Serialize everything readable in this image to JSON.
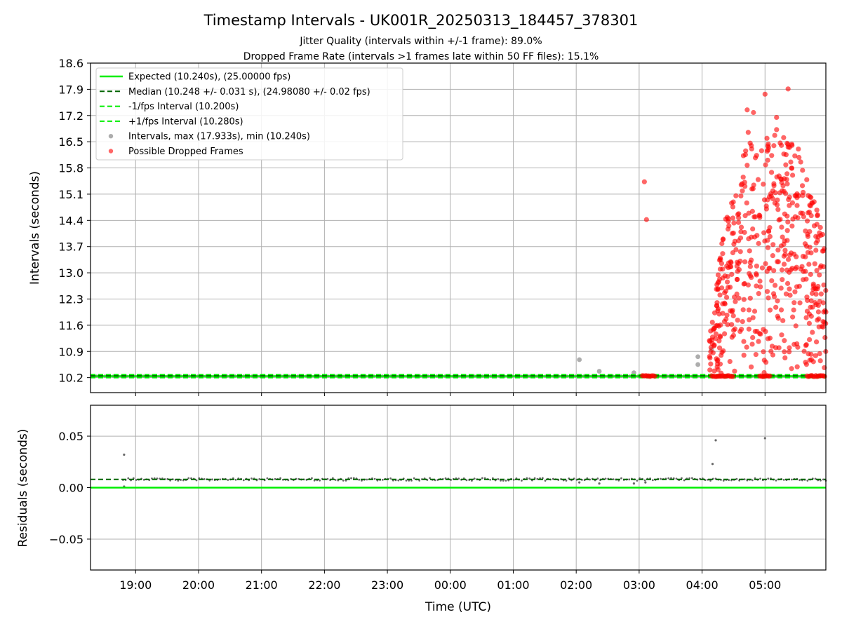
{
  "figure": {
    "title": "Timestamp Intervals - UK001R_20250313_184457_378301",
    "subtitle_1": "Jitter Quality (intervals within +/-1 frame): 89.0%",
    "subtitle_2": "Dropped Frame Rate (intervals >1 frames late within 50 FF files): 15.1%"
  },
  "colors": {
    "expected": "#00ee00",
    "median": "#006400",
    "interval_gray": "#999999",
    "dropped_red": "#ff0000",
    "residual_gray": "#666666",
    "grid": "#b0b0b0"
  },
  "chart_data": [
    {
      "type": "scatter",
      "title": "",
      "xlabel": "",
      "ylabel": "Intervals (seconds)",
      "x_unit": "time UTC",
      "xlim": [
        "18:17",
        "05:58"
      ],
      "ylim": [
        9.8,
        18.6
      ],
      "x_ticks": [
        "19:00",
        "20:00",
        "21:00",
        "22:00",
        "23:00",
        "00:00",
        "01:00",
        "02:00",
        "03:00",
        "04:00",
        "05:00"
      ],
      "y_ticks": [
        "10.2",
        "10.9",
        "11.6",
        "12.3",
        "13.0",
        "13.7",
        "14.4",
        "15.1",
        "15.8",
        "16.5",
        "17.2",
        "17.9",
        "18.6"
      ],
      "grid": true,
      "legend_position": "top-left",
      "legend": [
        "Expected (10.240s), (25.00000 fps)",
        "Median (10.248 +/- 0.031 s), (24.98080 +/- 0.02 fps)",
        "-1/fps Interval (10.200s)",
        "+1/fps Interval (10.280s)",
        "Intervals, max (17.933s), min (10.240s)",
        "Possible Dropped Frames"
      ],
      "reference_lines": {
        "expected": 10.24,
        "median": 10.248,
        "minus_one_frame": 10.2,
        "plus_one_frame": 10.28
      },
      "baseline_span": [
        "18:17",
        "05:58"
      ],
      "gray_outliers": [
        {
          "x": "02:03",
          "y": 10.68
        },
        {
          "x": "02:22",
          "y": 10.37
        },
        {
          "x": "02:55",
          "y": 10.33
        },
        {
          "x": "03:56",
          "y": 10.55
        },
        {
          "x": "03:56",
          "y": 10.76
        },
        {
          "x": "04:09",
          "y": 10.95
        }
      ],
      "dropped_frames": {
        "extent": [
          "04:07",
          "05:58"
        ],
        "baseline_clusters": [
          {
            "start": "03:03",
            "end": "03:16",
            "y": 10.24
          },
          {
            "start": "04:09",
            "end": "04:30",
            "y": 10.24
          },
          {
            "start": "04:55",
            "end": "05:05",
            "y": 10.24
          },
          {
            "start": "05:40",
            "end": "05:58",
            "y": 10.24
          }
        ],
        "isolated": [
          {
            "x": "03:05",
            "y": 15.43
          },
          {
            "x": "03:07",
            "y": 14.42
          },
          {
            "x": "05:00",
            "y": 17.77
          },
          {
            "x": "05:22",
            "y": 17.91
          },
          {
            "x": "04:43",
            "y": 17.35
          },
          {
            "x": "04:49",
            "y": 17.28
          },
          {
            "x": "05:11",
            "y": 17.15
          }
        ],
        "max_interval": 17.933,
        "range": [
          10.24,
          17.933
        ]
      }
    },
    {
      "type": "scatter",
      "title": "",
      "xlabel": "Time (UTC)",
      "ylabel": "Residuals (seconds)",
      "xlim": [
        "18:17",
        "05:58"
      ],
      "ylim": [
        -0.08,
        0.08
      ],
      "x_ticks": [
        "19:00",
        "20:00",
        "21:00",
        "22:00",
        "23:00",
        "00:00",
        "01:00",
        "02:00",
        "03:00",
        "04:00",
        "05:00"
      ],
      "y_ticks": [
        "0.05",
        "0.00",
        "−0.05"
      ],
      "y_tick_values": [
        0.05,
        0.0,
        -0.05
      ],
      "grid": true,
      "reference_lines": {
        "zero": 0.0,
        "median_residual": 0.008
      },
      "baseline": {
        "start": "18:48",
        "end": "05:58",
        "y": 0.008
      },
      "outliers": [
        {
          "x": "18:49",
          "y": 0.032
        },
        {
          "x": "18:49",
          "y": 0.001
        },
        {
          "x": "04:10",
          "y": 0.023
        },
        {
          "x": "04:13",
          "y": 0.046
        },
        {
          "x": "05:00",
          "y": 0.048
        },
        {
          "x": "02:03",
          "y": 0.005
        },
        {
          "x": "02:22",
          "y": 0.004
        },
        {
          "x": "02:55",
          "y": 0.004
        },
        {
          "x": "03:06",
          "y": 0.005
        }
      ]
    }
  ]
}
